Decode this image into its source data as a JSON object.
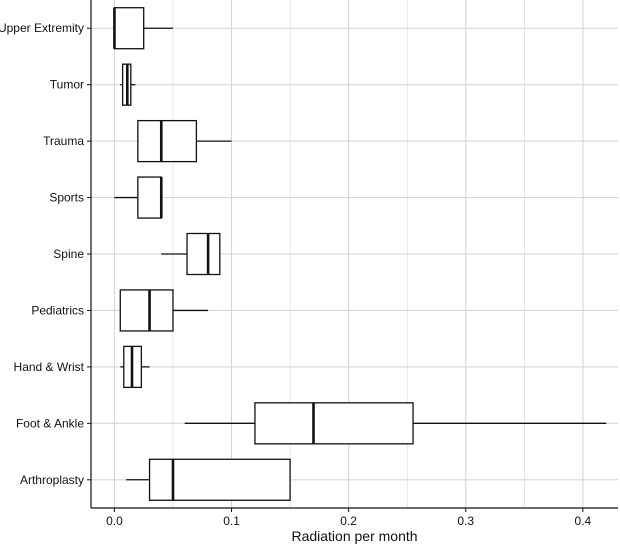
{
  "chart_data": {
    "type": "boxplot",
    "orientation": "horizontal",
    "title": "",
    "xlabel": "Radiation per month",
    "ylabel": "",
    "xlim": [
      -0.02,
      0.43
    ],
    "x_ticks": [
      0.0,
      0.1,
      0.2,
      0.3,
      0.4
    ],
    "x_tick_labels": [
      "0.0",
      "0.1",
      "0.2",
      "0.3",
      "0.4"
    ],
    "grid": true,
    "categories": [
      "Upper Extremity",
      "Tumor",
      "Trauma",
      "Sports",
      "Spine",
      "Pediatrics",
      "Hand & Wrist",
      "Foot & Ankle",
      "Arthroplasty"
    ],
    "boxes": [
      {
        "category": "Upper Extremity",
        "whisker_low": 0.0,
        "q1": 0.0,
        "median": 0.0,
        "q3": 0.025,
        "whisker_high": 0.05
      },
      {
        "category": "Tumor",
        "whisker_low": 0.005,
        "q1": 0.007,
        "median": 0.011,
        "q3": 0.014,
        "whisker_high": 0.018
      },
      {
        "category": "Trauma",
        "whisker_low": 0.02,
        "q1": 0.02,
        "median": 0.04,
        "q3": 0.07,
        "whisker_high": 0.1
      },
      {
        "category": "Sports",
        "whisker_low": 0.0,
        "q1": 0.02,
        "median": 0.04,
        "q3": 0.04,
        "whisker_high": 0.04
      },
      {
        "category": "Spine",
        "whisker_low": 0.04,
        "q1": 0.062,
        "median": 0.08,
        "q3": 0.09,
        "whisker_high": 0.09
      },
      {
        "category": "Pediatrics",
        "whisker_low": 0.005,
        "q1": 0.005,
        "median": 0.03,
        "q3": 0.05,
        "whisker_high": 0.08
      },
      {
        "category": "Hand & Wrist",
        "whisker_low": 0.005,
        "q1": 0.008,
        "median": 0.015,
        "q3": 0.023,
        "whisker_high": 0.03
      },
      {
        "category": "Foot & Ankle",
        "whisker_low": 0.06,
        "q1": 0.12,
        "median": 0.17,
        "q3": 0.255,
        "whisker_high": 0.42
      },
      {
        "category": "Arthroplasty",
        "whisker_low": 0.01,
        "q1": 0.03,
        "median": 0.05,
        "q3": 0.15,
        "whisker_high": 0.15
      }
    ],
    "colors": {
      "box_fill": "#ffffff",
      "box_stroke": "#111111",
      "grid": "#d6d6d6",
      "axis": "#111111",
      "background": "#ffffff"
    }
  }
}
